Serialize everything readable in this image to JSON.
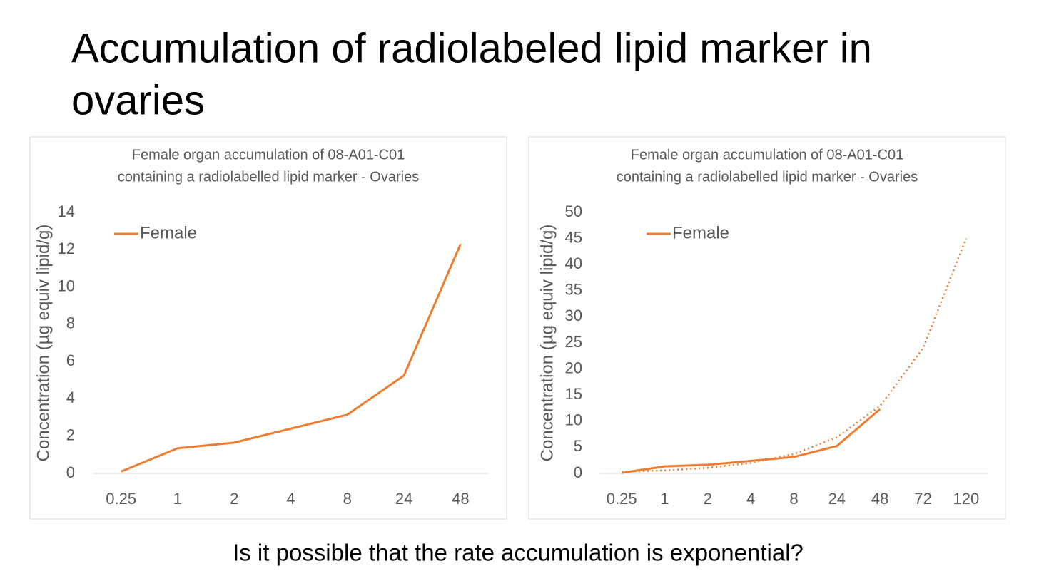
{
  "title": [
    "Accumulation of radiolabeled lipid marker in",
    "ovaries"
  ],
  "question": "Is it possible that the rate accumulation is exponential?",
  "chart_data": [
    {
      "type": "line",
      "title": [
        "Female organ accumulation of 08-A01-C01",
        "containing a radiolabelled lipid marker - Ovaries"
      ],
      "y_label": "Concentration (µg equiv lipid/g)",
      "categories": [
        "0.25",
        "1",
        "2",
        "4",
        "8",
        "24",
        "48"
      ],
      "series": [
        {
          "name": "Female",
          "color": "#ed7d31",
          "values": [
            0.1,
            1.35,
            1.65,
            2.4,
            3.15,
            5.25,
            12.3
          ]
        }
      ],
      "ylim": [
        0,
        14
      ],
      "yticks": [
        0,
        2,
        4,
        6,
        8,
        10,
        12,
        14
      ],
      "legend": "top-left"
    },
    {
      "type": "line",
      "title": [
        "Female organ accumulation of 08-A01-C01",
        "containing a radiolabelled lipid marker - Ovaries"
      ],
      "y_label": "Concentration (µg equiv lipid/g)",
      "categories": [
        "0.25",
        "1",
        "2",
        "4",
        "8",
        "24",
        "48",
        "72",
        "120"
      ],
      "series": [
        {
          "name": "Female",
          "color": "#ed7d31",
          "values": [
            0.1,
            1.35,
            1.65,
            2.4,
            3.15,
            5.25,
            12.3,
            null,
            null
          ]
        }
      ],
      "trendline": {
        "color": "#ed7d31",
        "style": "dotted",
        "values": [
          0.31,
          0.58,
          1.08,
          2.0,
          3.7,
          6.9,
          12.9,
          24,
          45
        ]
      },
      "ylim": [
        0,
        50
      ],
      "yticks": [
        0,
        5,
        10,
        15,
        20,
        25,
        30,
        35,
        40,
        45,
        50
      ],
      "legend": "top-left"
    }
  ]
}
